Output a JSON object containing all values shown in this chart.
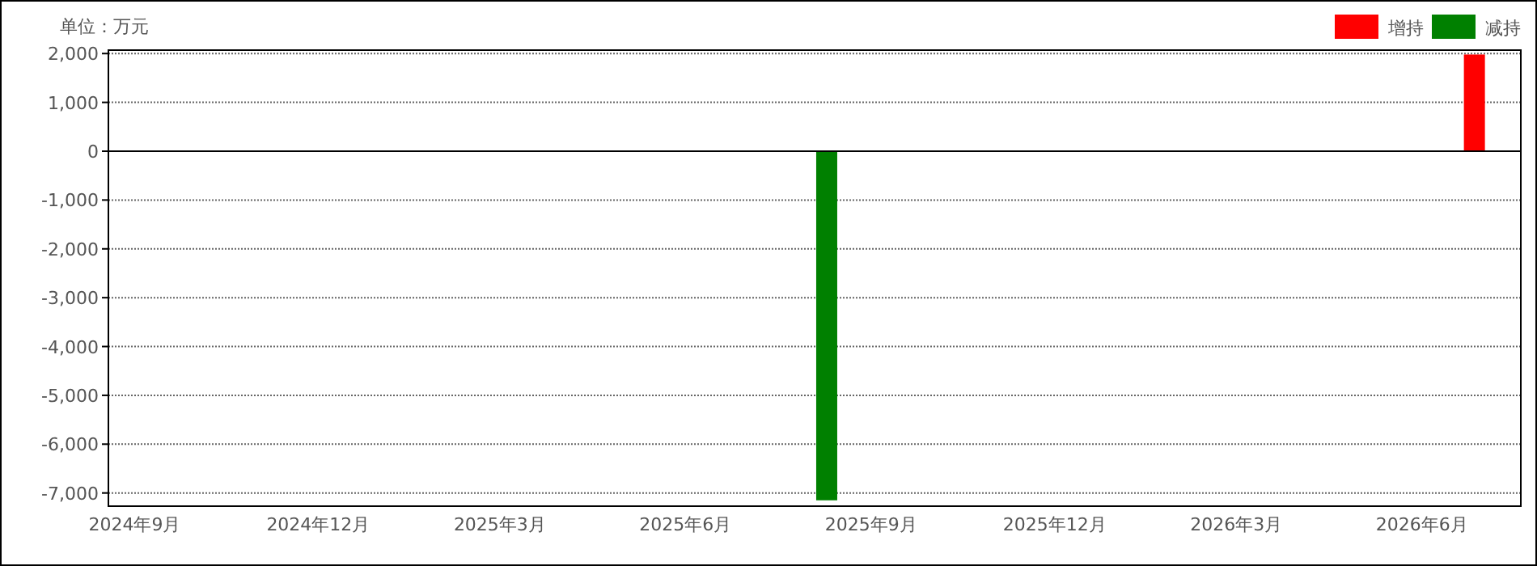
{
  "chart_data": {
    "type": "bar",
    "annotations": [
      "单位：万元"
    ],
    "x": [
      "2025-08-10",
      "2026-06-27"
    ],
    "series": [
      {
        "name": "增持",
        "color": "#ff0000",
        "values": [
          null,
          1980
        ]
      },
      {
        "name": "减持",
        "color": "#008000",
        "values": [
          -7150,
          null
        ]
      }
    ],
    "xlim": [
      "2024-08-19",
      "2026-07-20"
    ],
    "xticks": [
      {
        "value": "2024-09-01",
        "label": "2024年9月"
      },
      {
        "value": "2024-12-01",
        "label": "2024年12月"
      },
      {
        "value": "2025-03-01",
        "label": "2025年3月"
      },
      {
        "value": "2025-06-01",
        "label": "2025年6月"
      },
      {
        "value": "2025-09-01",
        "label": "2025年9月"
      },
      {
        "value": "2025-12-01",
        "label": "2025年12月"
      },
      {
        "value": "2026-03-01",
        "label": "2026年3月"
      },
      {
        "value": "2026-06-01",
        "label": "2026年6月"
      }
    ],
    "ylim": [
      -7270,
      2070
    ],
    "yticks": [
      {
        "value": 2000,
        "label": "2,000"
      },
      {
        "value": 1000,
        "label": "1,000"
      },
      0,
      {
        "value": -1000,
        "label": "-1,000"
      },
      {
        "value": -2000,
        "label": "-2,000"
      },
      {
        "value": -3000,
        "label": "-3,000"
      },
      {
        "value": -4000,
        "label": "-4,000"
      },
      {
        "value": -5000,
        "label": "-5,000"
      },
      {
        "value": -6000,
        "label": "-6,000"
      },
      {
        "value": -7000,
        "label": "-7,000"
      }
    ],
    "grid": "y",
    "legend": "top right"
  }
}
